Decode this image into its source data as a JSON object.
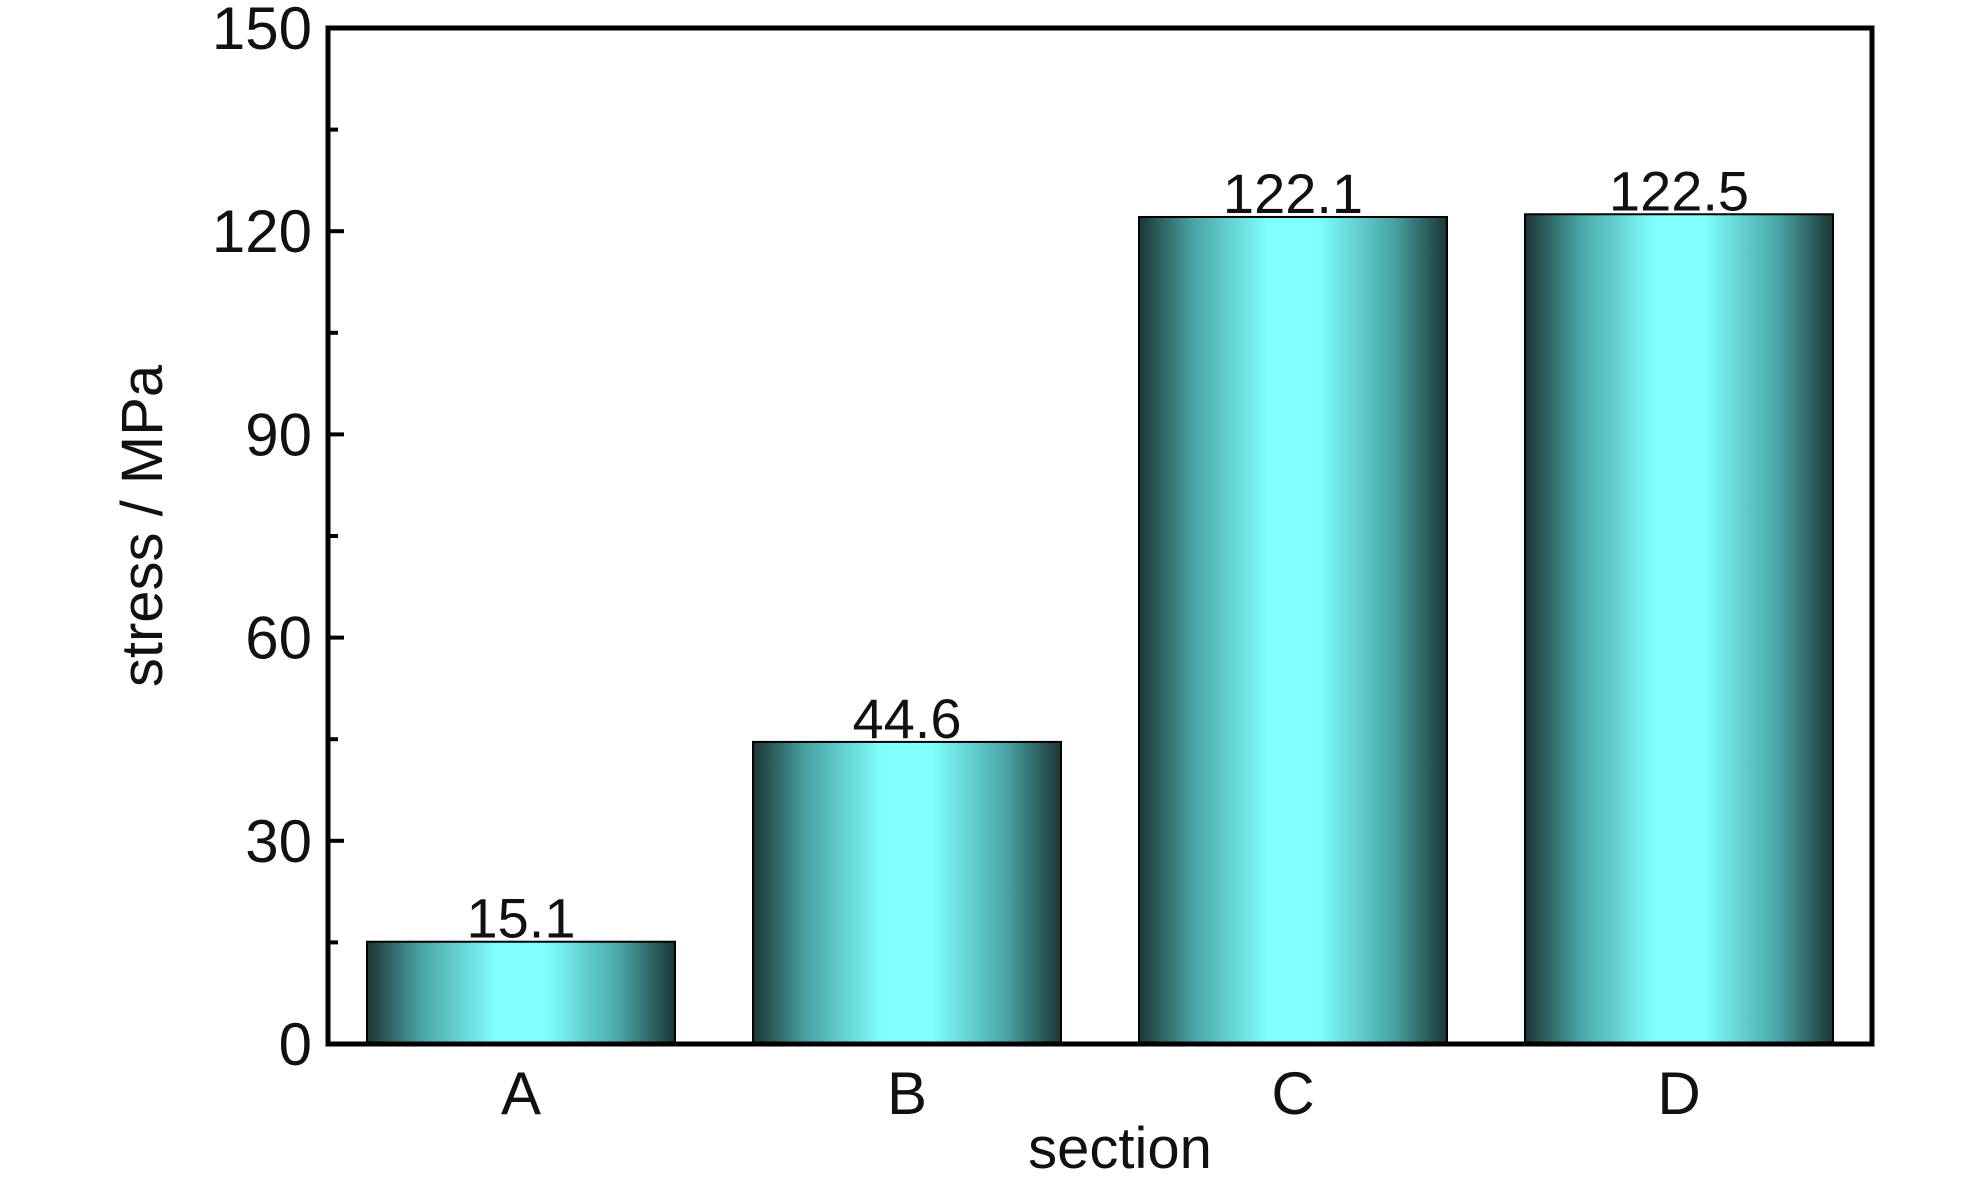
{
  "chart_data": {
    "type": "bar",
    "categories": [
      "A",
      "B",
      "C",
      "D"
    ],
    "values": [
      15.1,
      44.6,
      122.1,
      122.5
    ],
    "data_labels": [
      "15.1",
      "44.6",
      "122.1",
      "122.5"
    ],
    "xlabel": "section",
    "ylabel": "stress / MPa",
    "ylim": [
      0,
      150
    ],
    "yticks": [
      0,
      30,
      60,
      90,
      120,
      150
    ],
    "ytick_labels": [
      "0",
      "30",
      "60",
      "90",
      "120",
      "150"
    ],
    "yminor_step": 15,
    "grid": false,
    "legend": false,
    "colors": {
      "bar_light": "#80ffff",
      "bar_mid": "#4aa6a6",
      "bar_dark": "#1c3536",
      "axis": "#000000"
    }
  }
}
